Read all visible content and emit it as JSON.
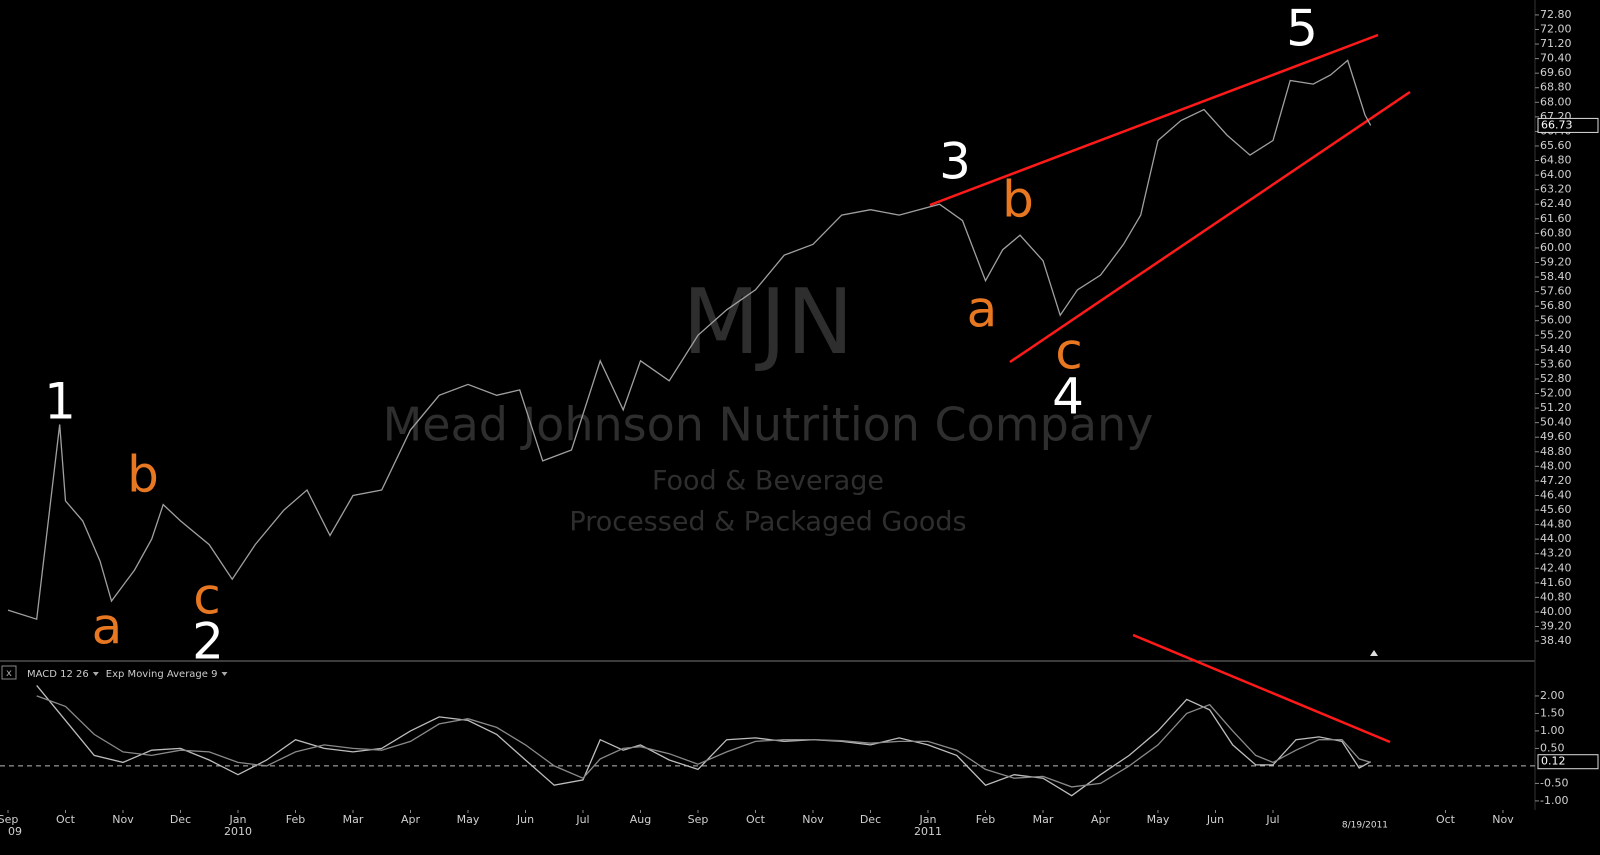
{
  "chart_data": [
    {
      "type": "line",
      "title": "MJN",
      "subtitle": "Mead Johnson Nutrition Company",
      "sector": "Food & Beverage",
      "industry": "Processed & Packaged Goods",
      "color": "#a0a0a0",
      "x": [
        0,
        0.5,
        0.9,
        1.0,
        1.3,
        1.6,
        1.8,
        2.2,
        2.5,
        2.7,
        3.0,
        3.5,
        3.9,
        4.3,
        4.8,
        5.2,
        5.6,
        6.0,
        6.5,
        7.0,
        7.5,
        8.0,
        8.5,
        8.9,
        9.3,
        9.8,
        10.3,
        10.7,
        11.0,
        11.5,
        12.0,
        12.5,
        13.0,
        13.5,
        14.0,
        14.5,
        15.0,
        15.5,
        16.2,
        16.6,
        17.0,
        17.3,
        17.6,
        18.0,
        18.3,
        18.6,
        19.0,
        19.4,
        19.7,
        20.0,
        20.4,
        20.8,
        21.2,
        21.6,
        22.0,
        22.3,
        22.7,
        23.0,
        23.3,
        23.6,
        23.7
      ],
      "values": [
        40.1,
        39.6,
        50.3,
        46.1,
        45.0,
        42.8,
        40.6,
        42.3,
        44.0,
        45.9,
        45.0,
        43.7,
        41.8,
        43.7,
        45.6,
        46.7,
        44.2,
        46.4,
        46.7,
        50.0,
        51.9,
        52.5,
        51.9,
        52.2,
        48.3,
        48.9,
        53.8,
        51.1,
        53.8,
        52.7,
        55.2,
        56.6,
        57.7,
        59.6,
        60.2,
        61.8,
        62.1,
        61.8,
        62.4,
        61.5,
        58.2,
        59.9,
        60.7,
        59.3,
        56.3,
        57.7,
        58.5,
        60.2,
        61.8,
        65.9,
        67.0,
        67.6,
        66.2,
        65.1,
        65.9,
        69.2,
        69.0,
        69.5,
        70.3,
        67.3,
        66.73
      ],
      "last_value": 66.73,
      "xlim": [
        -0.139,
        26.557
      ],
      "xticks": [
        {
          "value": 0,
          "label": "Sep"
        },
        {
          "value": 1,
          "label": "Oct"
        },
        {
          "value": 2,
          "label": "Nov"
        },
        {
          "value": 3,
          "label": "Dec"
        },
        {
          "value": 4,
          "label": "Jan"
        },
        {
          "value": 5,
          "label": "Feb"
        },
        {
          "value": 6,
          "label": "Mar"
        },
        {
          "value": 7,
          "label": "Apr"
        },
        {
          "value": 8,
          "label": "May"
        },
        {
          "value": 9,
          "label": "Jun"
        },
        {
          "value": 10,
          "label": "Jul"
        },
        {
          "value": 11,
          "label": "Aug"
        },
        {
          "value": 12,
          "label": "Sep"
        },
        {
          "value": 13,
          "label": "Oct"
        },
        {
          "value": 14,
          "label": "Nov"
        },
        {
          "value": 15,
          "label": "Dec"
        },
        {
          "value": 16,
          "label": "Jan"
        },
        {
          "value": 17,
          "label": "Feb"
        },
        {
          "value": 18,
          "label": "Mar"
        },
        {
          "value": 19,
          "label": "Apr"
        },
        {
          "value": 20,
          "label": "May"
        },
        {
          "value": 21,
          "label": "Jun"
        },
        {
          "value": 22,
          "label": "Jul"
        },
        {
          "value": 25,
          "label": "Oct"
        },
        {
          "value": 26,
          "label": "Nov"
        }
      ],
      "year_labels": [
        {
          "value": 0,
          "label": "09"
        },
        {
          "value": 4,
          "label": "2010"
        },
        {
          "value": 16,
          "label": "2011"
        }
      ],
      "date_marker": {
        "value": 23.6,
        "label": "8/19/2011"
      },
      "ylim": [
        37.36,
        73.62
      ],
      "yticks": [
        {
          "value": 72.8,
          "label": "72.80"
        },
        {
          "value": 72.0,
          "label": "72.00"
        },
        {
          "value": 71.2,
          "label": "71.20"
        },
        {
          "value": 70.4,
          "label": "70.40"
        },
        {
          "value": 69.6,
          "label": "69.60"
        },
        {
          "value": 68.8,
          "label": "68.80"
        },
        {
          "value": 68.0,
          "label": "68.00"
        },
        {
          "value": 67.2,
          "label": "67.20"
        },
        {
          "value": 66.4,
          "label": "66.40"
        },
        {
          "value": 65.6,
          "label": "65.60"
        },
        {
          "value": 64.8,
          "label": "64.80"
        },
        {
          "value": 64.0,
          "label": "64.00"
        },
        {
          "value": 63.2,
          "label": "63.20"
        },
        {
          "value": 62.4,
          "label": "62.40"
        },
        {
          "value": 61.6,
          "label": "61.60"
        },
        {
          "value": 60.8,
          "label": "60.80"
        },
        {
          "value": 60.0,
          "label": "60.00"
        },
        {
          "value": 59.2,
          "label": "59.20"
        },
        {
          "value": 58.4,
          "label": "58.40"
        },
        {
          "value": 57.6,
          "label": "57.60"
        },
        {
          "value": 56.8,
          "label": "56.80"
        },
        {
          "value": 56.0,
          "label": "56.00"
        },
        {
          "value": 55.2,
          "label": "55.20"
        },
        {
          "value": 54.4,
          "label": "54.40"
        },
        {
          "value": 53.6,
          "label": "53.60"
        },
        {
          "value": 52.8,
          "label": "52.80"
        },
        {
          "value": 52.0,
          "label": "52.00"
        },
        {
          "value": 51.2,
          "label": "51.20"
        },
        {
          "value": 50.4,
          "label": "50.40"
        },
        {
          "value": 49.6,
          "label": "49.60"
        },
        {
          "value": 48.8,
          "label": "48.80"
        },
        {
          "value": 48.0,
          "label": "48.00"
        },
        {
          "value": 47.2,
          "label": "47.20"
        },
        {
          "value": 46.4,
          "label": "46.40"
        },
        {
          "value": 45.6,
          "label": "45.60"
        },
        {
          "value": 44.8,
          "label": "44.80"
        },
        {
          "value": 44.0,
          "label": "44.00"
        },
        {
          "value": 43.2,
          "label": "43.20"
        },
        {
          "value": 42.4,
          "label": "42.40"
        },
        {
          "value": 41.6,
          "label": "41.60"
        },
        {
          "value": 40.8,
          "label": "40.80"
        },
        {
          "value": 40.0,
          "label": "40.00"
        },
        {
          "value": 39.2,
          "label": "39.20"
        },
        {
          "value": 38.4,
          "label": "38.40"
        }
      ],
      "annotations": [
        {
          "text": "1",
          "color": "#ffffff"
        },
        {
          "text": "a",
          "color": "#e87722"
        },
        {
          "text": "b",
          "color": "#e87722"
        },
        {
          "text": "c",
          "color": "#e87722"
        },
        {
          "text": "2",
          "color": "#ffffff"
        },
        {
          "text": "3",
          "color": "#ffffff"
        },
        {
          "text": "a",
          "color": "#e87722"
        },
        {
          "text": "b",
          "color": "#e87722"
        },
        {
          "text": "c",
          "color": "#e87722"
        },
        {
          "text": "4",
          "color": "#ffffff"
        },
        {
          "text": "5",
          "color": "#ffffff"
        }
      ]
    },
    {
      "type": "line",
      "x": [
        0.5,
        1,
        1.5,
        2,
        2.5,
        3,
        3.5,
        4,
        4.5,
        5,
        5.5,
        6,
        6.5,
        7,
        7.5,
        8,
        8.5,
        9,
        9.5,
        10,
        10.3,
        10.7,
        11,
        11.5,
        12,
        12.5,
        13,
        13.5,
        14,
        14.5,
        15,
        15.5,
        16,
        16.5,
        17,
        17.5,
        18,
        18.5,
        19,
        19.5,
        20,
        20.5,
        20.9,
        21.3,
        21.7,
        22,
        22.4,
        22.8,
        23.2,
        23.5,
        23.7
      ],
      "series": [
        {
          "name": "MACD 12 26",
          "color": "#bdbdbd",
          "values": [
            2.3,
            1.3,
            0.3,
            0.1,
            0.45,
            0.5,
            0.17,
            -0.25,
            0.17,
            0.75,
            0.5,
            0.4,
            0.5,
            1.0,
            1.4,
            1.3,
            0.9,
            0.17,
            -0.55,
            -0.4,
            0.75,
            0.45,
            0.6,
            0.17,
            -0.1,
            0.75,
            0.8,
            0.7,
            0.75,
            0.7,
            0.6,
            0.8,
            0.6,
            0.3,
            -0.55,
            -0.25,
            -0.35,
            -0.85,
            -0.25,
            0.3,
            1.0,
            1.9,
            1.6,
            0.6,
            0.03,
            0.03,
            0.75,
            0.83,
            0.7,
            -0.06,
            0.12
          ]
        },
        {
          "name": "Exp Moving Average 9",
          "color": "#8a8a8a",
          "values": [
            2.0,
            1.7,
            0.9,
            0.4,
            0.3,
            0.45,
            0.4,
            0.1,
            0.0,
            0.4,
            0.6,
            0.5,
            0.45,
            0.7,
            1.2,
            1.35,
            1.1,
            0.6,
            0.0,
            -0.35,
            0.2,
            0.5,
            0.55,
            0.35,
            0.05,
            0.4,
            0.7,
            0.75,
            0.75,
            0.72,
            0.65,
            0.7,
            0.7,
            0.45,
            -0.1,
            -0.35,
            -0.3,
            -0.6,
            -0.5,
            0.0,
            0.6,
            1.5,
            1.75,
            1.0,
            0.3,
            0.1,
            0.45,
            0.75,
            0.75,
            0.2,
            0.1
          ]
        }
      ],
      "last_value": 0.12,
      "baseline": 0,
      "ylim": [
        -1.26,
        2.97
      ],
      "yticks": [
        {
          "value": 2,
          "label": "2.00"
        },
        {
          "value": 1.5,
          "label": "1.50"
        },
        {
          "value": 1,
          "label": "1.00"
        },
        {
          "value": 0.5,
          "label": "0.50"
        },
        {
          "value": -0.5,
          "label": "-0.50"
        },
        {
          "value": -1,
          "label": "-1.00"
        }
      ]
    }
  ]
}
